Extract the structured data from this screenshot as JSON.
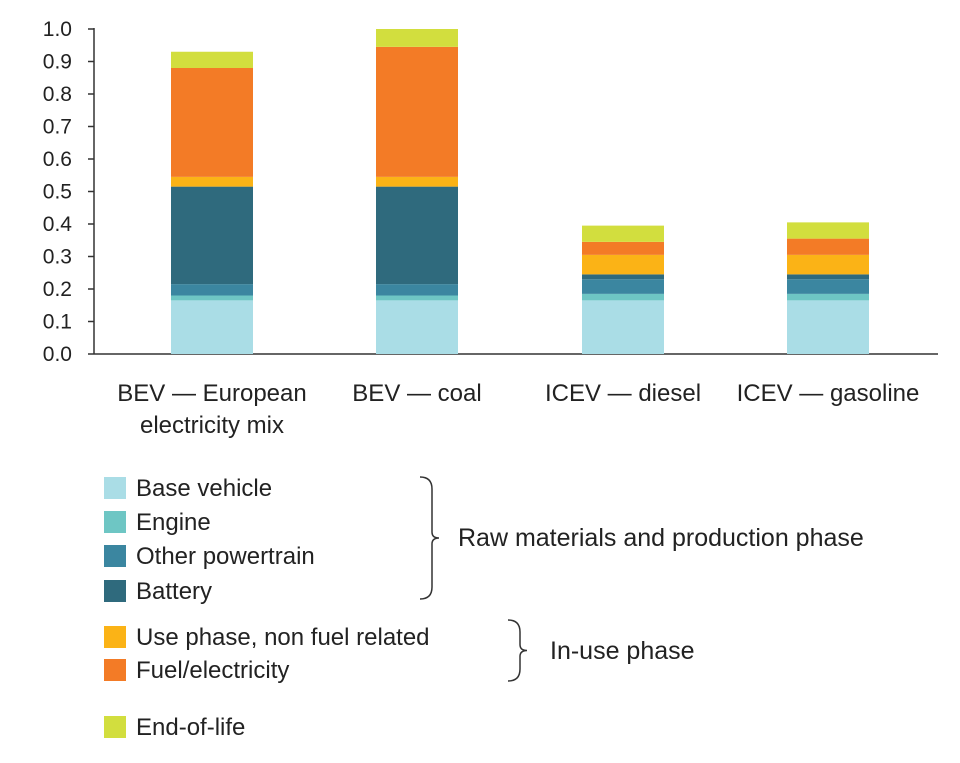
{
  "chart_data": {
    "type": "bar",
    "stacked": true,
    "title": "",
    "xlabel": "",
    "ylabel": "",
    "ylim": [
      0,
      1.0
    ],
    "yticks": [
      "0.0",
      "0.1",
      "0.2",
      "0.3",
      "0.4",
      "0.5",
      "0.6",
      "0.7",
      "0.8",
      "0.9",
      "1.0"
    ],
    "grid": false,
    "legend_position": "bottom-left",
    "categories": [
      {
        "line1": "BEV — European",
        "line2": "electricity mix"
      },
      {
        "line1": "BEV — coal",
        "line2": ""
      },
      {
        "line1": "ICEV — diesel",
        "line2": ""
      },
      {
        "line1": "ICEV — gasoline",
        "line2": ""
      }
    ],
    "series": [
      {
        "name": "Base vehicle",
        "color": "#aadde6",
        "values": [
          0.165,
          0.165,
          0.165,
          0.165
        ]
      },
      {
        "name": "Engine",
        "color": "#6ec6c4",
        "values": [
          0.015,
          0.015,
          0.02,
          0.02
        ]
      },
      {
        "name": "Other powertrain",
        "color": "#3b86a0",
        "values": [
          0.035,
          0.035,
          0.045,
          0.045
        ]
      },
      {
        "name": "Battery",
        "color": "#2f6a7d",
        "values": [
          0.3,
          0.3,
          0.015,
          0.015
        ]
      },
      {
        "name": "Use phase, non fuel related",
        "color": "#fbb316",
        "values": [
          0.03,
          0.03,
          0.06,
          0.06
        ]
      },
      {
        "name": "Fuel/electricity",
        "color": "#f37b26",
        "values": [
          0.335,
          0.4,
          0.04,
          0.05
        ]
      },
      {
        "name": "End-of-life",
        "color": "#d2de3e",
        "values": [
          0.05,
          0.055,
          0.05,
          0.05
        ]
      }
    ],
    "groups": [
      {
        "label": "Raw materials and production phase",
        "series_indices": [
          0,
          1,
          2,
          3
        ]
      },
      {
        "label": "In-use phase",
        "series_indices": [
          4,
          5
        ]
      }
    ]
  }
}
